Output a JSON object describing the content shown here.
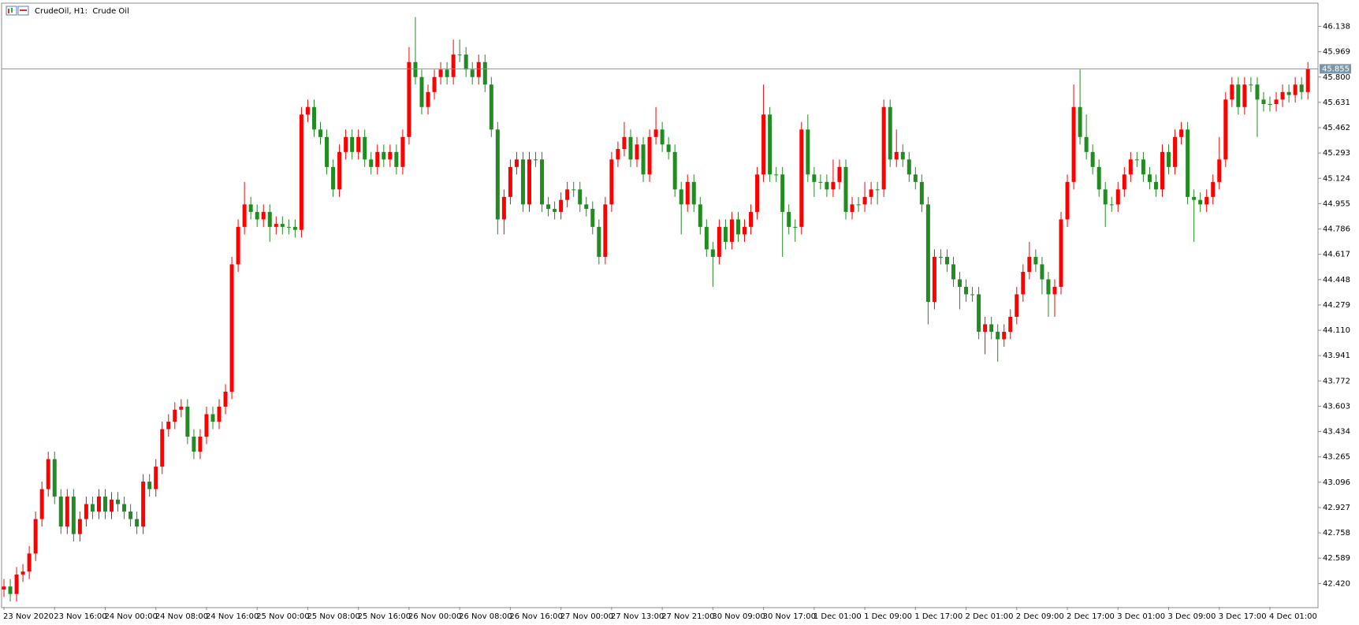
{
  "chart_data": {
    "type": "candlestick",
    "title": "CrudeOil, H1:  Crude Oil",
    "up_color": "#ff0000",
    "down_color": "#228b22",
    "price_line": 45.855,
    "price_line_color": "#7a96a8",
    "ylim": [
      42.264,
      46.288
    ],
    "yticks": [
      46.138,
      45.969,
      {
        "value": 45.8,
        "label": "45.800"
      },
      45.631,
      45.462,
      45.293,
      45.124,
      44.955,
      44.786,
      44.617,
      44.448,
      44.279,
      {
        "value": 44.11,
        "label": "44.110"
      },
      43.941,
      43.772,
      43.603,
      43.434,
      43.265,
      43.096,
      42.927,
      42.758,
      42.589,
      {
        "value": 42.42,
        "label": "42.420"
      }
    ],
    "categories": [
      "23 Nov 2020",
      null,
      null,
      null,
      null,
      null,
      null,
      null,
      "23 Nov 16:00",
      null,
      null,
      null,
      null,
      null,
      null,
      null,
      "24 Nov 00:00",
      null,
      null,
      null,
      null,
      null,
      null,
      null,
      "24 Nov 08:00",
      null,
      null,
      null,
      null,
      null,
      null,
      null,
      "24 Nov 16:00",
      null,
      null,
      null,
      null,
      null,
      null,
      null,
      "25 Nov 00:00",
      null,
      null,
      null,
      null,
      null,
      null,
      null,
      "25 Nov 08:00",
      null,
      null,
      null,
      null,
      null,
      null,
      null,
      "25 Nov 16:00",
      null,
      null,
      null,
      null,
      null,
      null,
      null,
      "26 Nov 00:00",
      null,
      null,
      null,
      null,
      null,
      null,
      null,
      "26 Nov 08:00",
      null,
      null,
      null,
      null,
      null,
      null,
      null,
      "26 Nov 16:00",
      null,
      null,
      null,
      null,
      null,
      null,
      null,
      "27 Nov 00:00",
      null,
      null,
      null,
      null,
      null,
      null,
      null,
      "27 Nov 13:00",
      null,
      null,
      null,
      null,
      null,
      null,
      null,
      "27 Nov 21:00",
      null,
      null,
      null,
      null,
      null,
      null,
      null,
      "30 Nov 09:00",
      null,
      null,
      null,
      null,
      null,
      null,
      null,
      "30 Nov 17:00",
      null,
      null,
      null,
      null,
      null,
      null,
      null,
      "1 Dec 01:00",
      null,
      null,
      null,
      null,
      null,
      null,
      null,
      "1 Dec 09:00",
      null,
      null,
      null,
      null,
      null,
      null,
      null,
      "1 Dec 17:00",
      null,
      null,
      null,
      null,
      null,
      null,
      null,
      "2 Dec 01:00",
      null,
      null,
      null,
      null,
      null,
      null,
      null,
      "2 Dec 09:00",
      null,
      null,
      null,
      null,
      null,
      null,
      null,
      "2 Dec 17:00",
      null,
      null,
      null,
      null,
      null,
      null,
      null,
      "3 Dec 01:00",
      null,
      null,
      null,
      null,
      null,
      null,
      null,
      "3 Dec 09:00",
      null,
      null,
      null,
      null,
      null,
      null,
      null,
      "3 Dec 17:00",
      null,
      null,
      null,
      null,
      null,
      null,
      null,
      "4 Dec 01:00",
      null,
      null,
      null,
      null,
      null,
      null
    ],
    "open": [
      42.38,
      42.4,
      42.35,
      42.48,
      42.5,
      42.62,
      42.85,
      43.05,
      43.25,
      43.0,
      42.8,
      43.0,
      42.75,
      42.85,
      42.95,
      42.9,
      43.0,
      42.9,
      42.98,
      42.95,
      42.9,
      42.85,
      42.8,
      43.1,
      43.05,
      43.2,
      43.45,
      43.5,
      43.58,
      43.6,
      43.4,
      43.3,
      43.4,
      43.55,
      43.5,
      43.6,
      43.7,
      44.55,
      44.8,
      44.95,
      44.9,
      44.85,
      44.9,
      44.8,
      44.82,
      44.8,
      44.8,
      44.78,
      45.55,
      45.6,
      45.45,
      45.4,
      45.2,
      45.05,
      45.3,
      45.4,
      45.3,
      45.4,
      45.25,
      45.2,
      45.3,
      45.25,
      45.3,
      45.2,
      45.4,
      45.9,
      45.8,
      45.6,
      45.7,
      45.8,
      45.85,
      45.8,
      45.95,
      45.95,
      45.85,
      45.8,
      45.9,
      45.75,
      45.45,
      44.85,
      45.0,
      45.2,
      45.25,
      44.95,
      45.25,
      45.25,
      44.95,
      44.92,
      44.9,
      44.98,
      45.05,
      45.05,
      44.95,
      44.92,
      44.8,
      44.6,
      44.95,
      45.25,
      45.32,
      45.4,
      45.25,
      45.35,
      45.15,
      45.4,
      45.45,
      45.35,
      45.3,
      45.05,
      44.95,
      45.1,
      44.95,
      44.8,
      44.65,
      44.6,
      44.8,
      44.7,
      44.85,
      44.75,
      44.8,
      44.9,
      45.15,
      45.55,
      45.15,
      45.15,
      44.9,
      44.8,
      44.8,
      45.45,
      45.15,
      45.1,
      45.1,
      45.05,
      45.1,
      45.2,
      44.9,
      44.95,
      44.95,
      45.0,
      45.05,
      45.05,
      45.6,
      45.25,
      45.3,
      45.25,
      45.15,
      45.1,
      44.95,
      44.3,
      44.6,
      44.6,
      44.55,
      44.45,
      44.4,
      44.35,
      44.35,
      44.1,
      44.15,
      44.1,
      44.05,
      44.1,
      44.2,
      44.35,
      44.5,
      44.6,
      44.55,
      44.45,
      44.35,
      44.4,
      44.85,
      45.1,
      45.6,
      45.4,
      45.3,
      45.2,
      45.05,
      44.95,
      44.95,
      45.05,
      45.15,
      45.25,
      45.25,
      45.15,
      45.1,
      45.05,
      45.3,
      45.2,
      45.4,
      45.45,
      45.0,
      44.98,
      44.95,
      45.0,
      45.1,
      45.25,
      45.65,
      45.75,
      45.6,
      45.75,
      45.75,
      45.65,
      45.62,
      45.62,
      45.65,
      45.7,
      45.68,
      45.75,
      45.7
    ],
    "high": [
      42.45,
      42.45,
      42.53,
      42.55,
      42.67,
      42.9,
      43.1,
      43.3,
      43.3,
      43.05,
      43.05,
      43.05,
      42.9,
      43.0,
      43.0,
      43.05,
      43.05,
      43.03,
      43.03,
      43.0,
      42.95,
      42.9,
      43.15,
      43.15,
      43.25,
      43.5,
      43.55,
      43.63,
      43.65,
      43.65,
      43.45,
      43.45,
      43.6,
      43.6,
      43.65,
      43.75,
      44.6,
      44.85,
      45.1,
      45.0,
      44.95,
      44.95,
      44.95,
      44.87,
      44.87,
      44.85,
      44.85,
      45.6,
      45.65,
      45.65,
      45.5,
      45.45,
      45.25,
      45.35,
      45.45,
      45.45,
      45.45,
      45.45,
      45.3,
      45.35,
      45.35,
      45.35,
      45.35,
      45.45,
      46.0,
      46.2,
      45.85,
      45.75,
      45.85,
      45.9,
      45.9,
      46.05,
      46.05,
      46.0,
      45.9,
      45.95,
      45.95,
      45.8,
      45.5,
      45.05,
      45.25,
      45.3,
      45.3,
      45.3,
      45.3,
      45.3,
      45.0,
      44.97,
      45.03,
      45.1,
      45.1,
      45.1,
      45.0,
      44.97,
      44.85,
      45.0,
      45.3,
      45.37,
      45.5,
      45.45,
      45.4,
      45.4,
      45.45,
      45.6,
      45.5,
      45.4,
      45.35,
      45.1,
      45.15,
      45.15,
      45.0,
      44.85,
      44.7,
      44.85,
      44.85,
      44.9,
      44.9,
      44.85,
      44.95,
      45.2,
      45.75,
      45.6,
      45.2,
      45.2,
      44.95,
      44.85,
      45.5,
      45.55,
      45.2,
      45.15,
      45.15,
      45.25,
      45.25,
      45.25,
      45.0,
      45.0,
      45.1,
      45.1,
      45.1,
      45.65,
      45.65,
      45.45,
      45.35,
      45.3,
      45.2,
      45.15,
      45.0,
      44.65,
      44.65,
      44.65,
      44.6,
      44.5,
      44.45,
      44.4,
      44.4,
      44.2,
      44.2,
      44.15,
      44.15,
      44.25,
      44.4,
      44.55,
      44.7,
      44.65,
      44.6,
      44.5,
      44.45,
      44.9,
      45.15,
      45.75,
      45.85,
      45.55,
      45.35,
      45.25,
      45.1,
      45.0,
      45.1,
      45.2,
      45.3,
      45.3,
      45.3,
      45.2,
      45.15,
      45.35,
      45.35,
      45.45,
      45.5,
      45.5,
      45.05,
      45.03,
      45.05,
      45.15,
      45.4,
      45.7,
      45.8,
      45.8,
      45.8,
      45.8,
      45.8,
      45.7,
      45.67,
      45.7,
      45.75,
      45.75,
      45.8,
      45.8,
      45.9
    ],
    "low": [
      42.33,
      42.3,
      42.3,
      42.43,
      42.45,
      42.57,
      42.8,
      43.0,
      42.95,
      42.75,
      42.75,
      42.7,
      42.7,
      42.8,
      42.85,
      42.85,
      42.85,
      42.85,
      42.9,
      42.85,
      42.8,
      42.75,
      42.75,
      43.0,
      43.0,
      43.15,
      43.4,
      43.45,
      43.53,
      43.35,
      43.25,
      43.25,
      43.35,
      43.45,
      43.45,
      43.55,
      43.65,
      44.5,
      44.75,
      44.85,
      44.8,
      44.8,
      44.7,
      44.75,
      44.75,
      44.75,
      44.73,
      44.73,
      45.5,
      45.4,
      45.35,
      45.15,
      45.0,
      45.0,
      45.25,
      45.25,
      45.25,
      45.2,
      45.15,
      45.15,
      45.2,
      45.2,
      45.15,
      45.15,
      45.35,
      45.75,
      45.55,
      45.55,
      45.65,
      45.75,
      45.75,
      45.75,
      45.9,
      45.8,
      45.75,
      45.75,
      45.7,
      45.4,
      44.75,
      44.75,
      44.95,
      45.15,
      44.9,
      44.9,
      45.2,
      44.9,
      44.87,
      44.85,
      44.85,
      44.93,
      45.0,
      44.9,
      44.87,
      44.75,
      44.55,
      44.55,
      44.9,
      45.2,
      45.27,
      45.2,
      45.2,
      45.1,
      45.1,
      45.35,
      45.3,
      45.25,
      45.0,
      44.75,
      44.9,
      44.9,
      44.75,
      44.6,
      44.4,
      44.55,
      44.65,
      44.65,
      44.7,
      44.7,
      44.75,
      44.85,
      45.1,
      45.1,
      45.1,
      44.6,
      44.75,
      44.7,
      44.75,
      45.1,
      45.0,
      45.05,
      45.0,
      45.0,
      45.05,
      44.85,
      44.85,
      44.9,
      44.9,
      44.95,
      44.95,
      45.0,
      45.2,
      45.2,
      45.2,
      45.1,
      45.05,
      44.9,
      44.15,
      44.25,
      44.55,
      44.5,
      44.4,
      44.25,
      44.3,
      44.3,
      44.05,
      43.95,
      44.05,
      43.9,
      44.0,
      44.05,
      44.15,
      44.3,
      44.45,
      44.5,
      44.35,
      44.2,
      44.2,
      44.35,
      44.8,
      45.05,
      45.35,
      45.25,
      45.15,
      45.0,
      44.8,
      44.9,
      44.9,
      45.0,
      45.1,
      45.2,
      45.1,
      45.05,
      45.0,
      45.0,
      45.15,
      45.15,
      45.35,
      44.95,
      44.7,
      44.9,
      44.9,
      44.95,
      45.05,
      45.2,
      45.6,
      45.55,
      45.55,
      45.7,
      45.4,
      45.57,
      45.57,
      45.57,
      45.6,
      45.63,
      45.63,
      45.65,
      45.65
    ],
    "close": [
      42.4,
      42.35,
      42.48,
      42.5,
      42.62,
      42.85,
      43.05,
      43.25,
      43.0,
      42.8,
      43.0,
      42.75,
      42.85,
      42.95,
      42.9,
      43.0,
      42.9,
      42.98,
      42.95,
      42.9,
      42.85,
      42.8,
      43.1,
      43.05,
      43.2,
      43.45,
      43.5,
      43.58,
      43.6,
      43.4,
      43.3,
      43.4,
      43.55,
      43.5,
      43.6,
      43.7,
      44.55,
      44.8,
      44.95,
      44.9,
      44.85,
      44.9,
      44.8,
      44.82,
      44.8,
      44.8,
      44.78,
      45.55,
      45.6,
      45.45,
      45.4,
      45.2,
      45.05,
      45.3,
      45.4,
      45.3,
      45.4,
      45.25,
      45.2,
      45.3,
      45.25,
      45.3,
      45.2,
      45.4,
      45.9,
      45.8,
      45.6,
      45.7,
      45.8,
      45.85,
      45.8,
      45.95,
      45.95,
      45.85,
      45.8,
      45.9,
      45.75,
      45.45,
      44.85,
      45.0,
      45.2,
      45.25,
      44.95,
      45.25,
      45.25,
      44.95,
      44.92,
      44.9,
      44.98,
      45.05,
      45.05,
      44.95,
      44.92,
      44.8,
      44.6,
      44.95,
      45.25,
      45.32,
      45.4,
      45.25,
      45.35,
      45.15,
      45.4,
      45.45,
      45.35,
      45.3,
      45.05,
      44.95,
      45.1,
      44.95,
      44.8,
      44.65,
      44.6,
      44.8,
      44.7,
      44.85,
      44.75,
      44.8,
      44.9,
      45.15,
      45.55,
      45.15,
      45.15,
      44.9,
      44.8,
      44.8,
      45.45,
      45.15,
      45.1,
      45.1,
      45.05,
      45.1,
      45.2,
      44.9,
      44.95,
      44.95,
      45.0,
      45.05,
      45.05,
      45.6,
      45.25,
      45.3,
      45.25,
      45.15,
      45.1,
      44.95,
      44.3,
      44.6,
      44.6,
      44.55,
      44.45,
      44.4,
      44.35,
      44.35,
      44.1,
      44.15,
      44.1,
      44.05,
      44.1,
      44.2,
      44.35,
      44.5,
      44.6,
      44.55,
      44.45,
      44.35,
      44.4,
      44.85,
      45.1,
      45.6,
      45.4,
      45.3,
      45.2,
      45.05,
      44.95,
      44.95,
      45.05,
      45.15,
      45.25,
      45.25,
      45.15,
      45.1,
      45.05,
      45.3,
      45.2,
      45.4,
      45.45,
      45.0,
      44.98,
      44.95,
      45.0,
      45.1,
      45.25,
      45.65,
      45.75,
      45.6,
      45.75,
      45.75,
      45.65,
      45.62,
      45.62,
      45.65,
      45.7,
      45.68,
      45.75,
      45.7,
      45.855
    ]
  }
}
